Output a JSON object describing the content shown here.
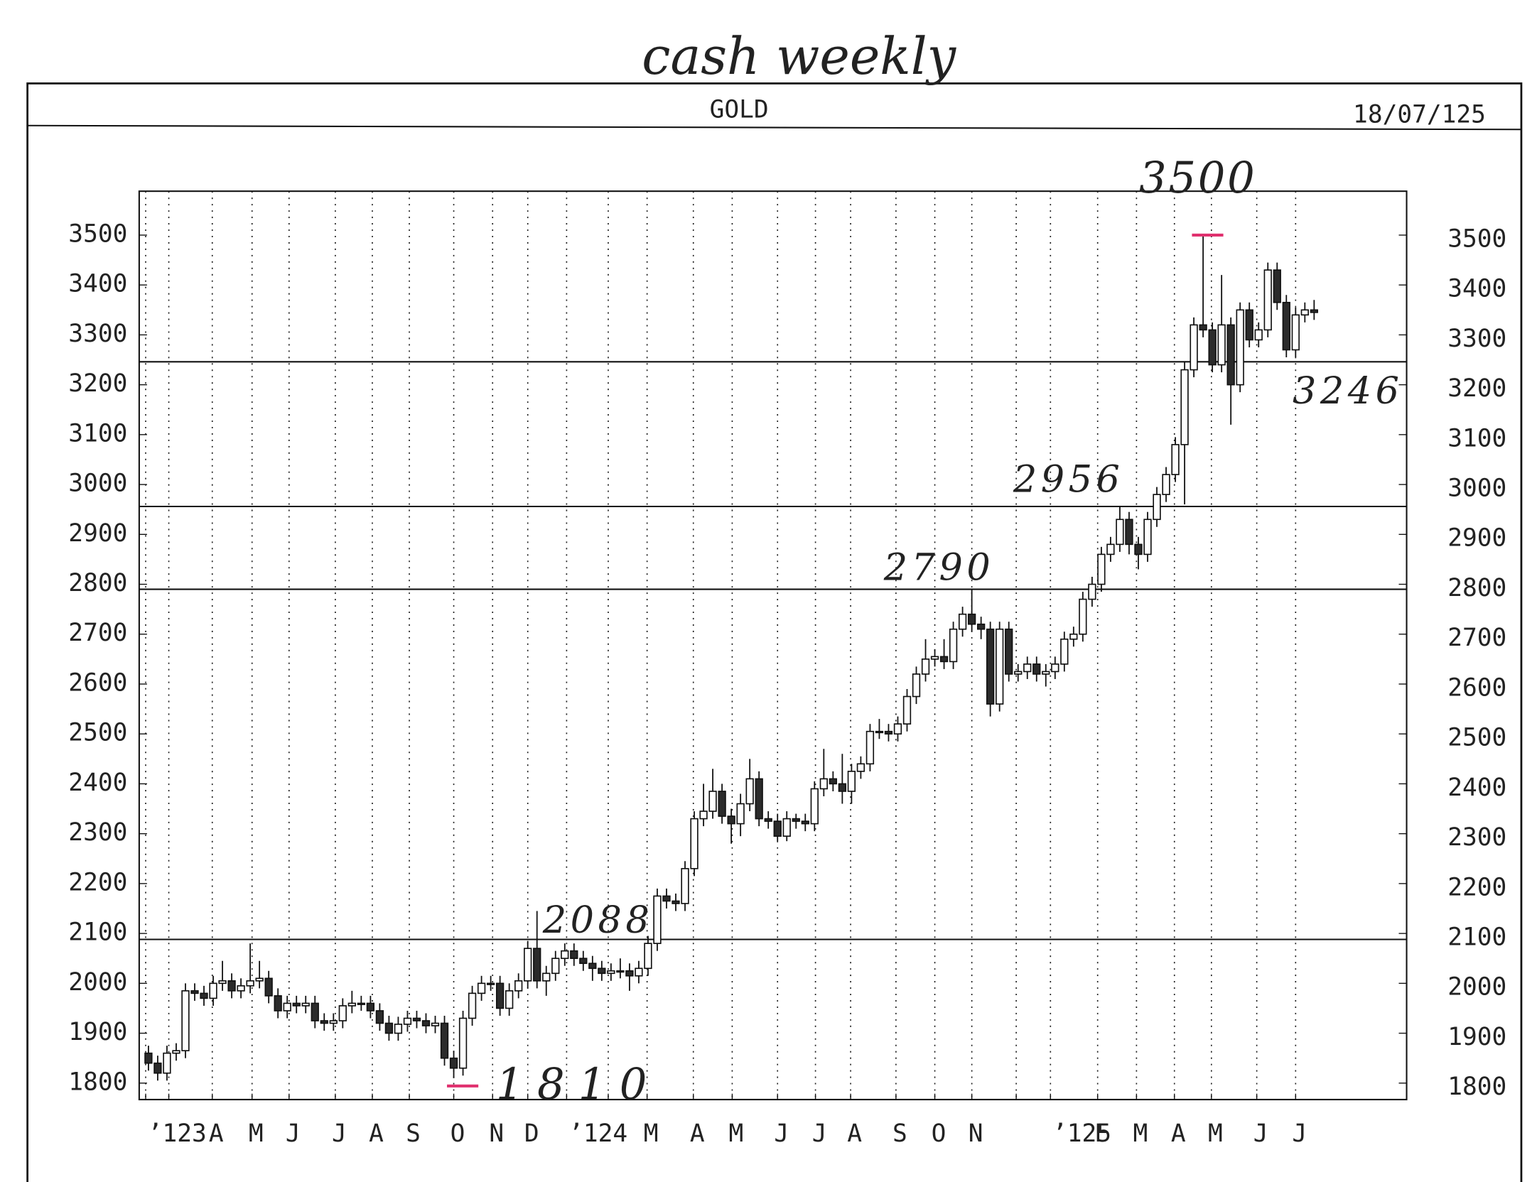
{
  "chart_data": {
    "type": "candlestick",
    "handwritten_title": "cash weekly",
    "title": "GOLD",
    "date": "18/07/125",
    "xlim": [
      -1,
      136
    ],
    "xticks": [
      {
        "value": -0.3,
        "label": "ʼ123"
      },
      {
        "value": 2.2,
        "label": null
      },
      {
        "value": 6.9,
        "label": "A"
      },
      {
        "value": 11.2,
        "label": "M"
      },
      {
        "value": 15.2,
        "label": "J"
      },
      {
        "value": 20.2,
        "label": "J"
      },
      {
        "value": 24.2,
        "label": "A"
      },
      {
        "value": 28.2,
        "label": "S"
      },
      {
        "value": 33,
        "label": "O"
      },
      {
        "value": 37.2,
        "label": "N"
      },
      {
        "value": 41,
        "label": "D"
      },
      {
        "value": 45.2,
        "label": "ʼ124"
      },
      {
        "value": 49.7,
        "label": null
      },
      {
        "value": 53.9,
        "label": "M"
      },
      {
        "value": 58.9,
        "label": "A"
      },
      {
        "value": 63.1,
        "label": "M"
      },
      {
        "value": 68,
        "label": "J"
      },
      {
        "value": 72.1,
        "label": "J"
      },
      {
        "value": 75.9,
        "label": "A"
      },
      {
        "value": 80.8,
        "label": "S"
      },
      {
        "value": 85,
        "label": "O"
      },
      {
        "value": 89,
        "label": "N"
      },
      {
        "value": 93.8,
        "label": null
      },
      {
        "value": 97.5,
        "label": "ʼ125"
      },
      {
        "value": 102.6,
        "label": "F"
      },
      {
        "value": 106.8,
        "label": "M"
      },
      {
        "value": 110.9,
        "label": "A"
      },
      {
        "value": 114.9,
        "label": "M"
      },
      {
        "value": 119.8,
        "label": "J"
      },
      {
        "value": 124,
        "label": "J"
      }
    ],
    "ylim": [
      1767,
      3588
    ],
    "yticks": [
      1800,
      1900,
      2000,
      2100,
      2200,
      2300,
      2400,
      2500,
      2600,
      2700,
      2800,
      2900,
      3000,
      3100,
      3200,
      3300,
      3400,
      3500
    ],
    "up_color": "#ffffff",
    "down_color": "#2b2b2b",
    "annotation_color": "#e0306e",
    "levels": [
      3246,
      2956,
      2790,
      2088
    ],
    "marked_extremes": [
      3500,
      1810
    ],
    "open": [
      1860,
      1840,
      1820,
      1860,
      1865,
      1985,
      1980,
      1970,
      2000,
      2005,
      1985,
      1995,
      2005,
      2010,
      1975,
      1945,
      1960,
      1955,
      1960,
      1925,
      1920,
      1925,
      1955,
      1960,
      1960,
      1945,
      1920,
      1900,
      1918,
      1930,
      1925,
      1915,
      1920,
      1850,
      1830,
      1930,
      1980,
      2000,
      2000,
      1950,
      1985,
      2005,
      2070,
      2005,
      2020,
      2050,
      2065,
      2050,
      2040,
      2030,
      2020,
      2025,
      2025,
      2015,
      2030,
      2080,
      2175,
      2165,
      2160,
      2230,
      2330,
      2345,
      2385,
      2335,
      2320,
      2360,
      2410,
      2330,
      2325,
      2295,
      2330,
      2325,
      2320,
      2390,
      2410,
      2400,
      2385,
      2425,
      2440,
      2505,
      2505,
      2500,
      2520,
      2575,
      2620,
      2650,
      2655,
      2645,
      2710,
      2740,
      2720,
      2710,
      2560,
      2710,
      2620,
      2625,
      2640,
      2620,
      2625,
      2640,
      2690,
      2700,
      2770,
      2800,
      2860,
      2880,
      2930,
      2880,
      2860,
      2930,
      2980,
      3020,
      3080,
      3230,
      3320,
      3310,
      3240,
      3320,
      3200,
      3350,
      3290,
      3310,
      3430,
      3365,
      3270,
      3340,
      3350
    ],
    "high": [
      1875,
      1855,
      1875,
      1880,
      2000,
      2000,
      1995,
      2015,
      2045,
      2020,
      2010,
      2080,
      2045,
      2025,
      1990,
      1975,
      1975,
      1975,
      1975,
      1940,
      1940,
      1970,
      1985,
      1975,
      1975,
      1960,
      1935,
      1933,
      1945,
      1945,
      1940,
      1935,
      1935,
      1865,
      1945,
      1995,
      2015,
      2015,
      2015,
      2000,
      2020,
      2085,
      2145,
      2035,
      2065,
      2080,
      2080,
      2065,
      2055,
      2045,
      2040,
      2050,
      2040,
      2045,
      2095,
      2190,
      2190,
      2180,
      2245,
      2345,
      2400,
      2430,
      2400,
      2350,
      2380,
      2450,
      2425,
      2345,
      2340,
      2345,
      2340,
      2340,
      2405,
      2470,
      2425,
      2460,
      2440,
      2455,
      2520,
      2530,
      2520,
      2535,
      2590,
      2635,
      2690,
      2670,
      2690,
      2725,
      2755,
      2790,
      2735,
      2725,
      2725,
      2725,
      2640,
      2655,
      2655,
      2640,
      2655,
      2705,
      2715,
      2785,
      2815,
      2875,
      2895,
      2955,
      2945,
      2895,
      2945,
      2995,
      3035,
      3095,
      3245,
      3335,
      3500,
      3325,
      3420,
      3335,
      3365,
      3365,
      3325,
      3445,
      3445,
      3380,
      3355,
      3365,
      3370
    ],
    "low": [
      1825,
      1805,
      1805,
      1845,
      1850,
      1965,
      1955,
      1955,
      1985,
      1970,
      1970,
      1980,
      1990,
      1960,
      1930,
      1930,
      1940,
      1940,
      1910,
      1905,
      1905,
      1910,
      1940,
      1945,
      1930,
      1905,
      1885,
      1885,
      1903,
      1910,
      1900,
      1900,
      1835,
      1810,
      1815,
      1915,
      1965,
      1985,
      1935,
      1935,
      1970,
      1990,
      1990,
      1975,
      2005,
      2035,
      2035,
      2025,
      2005,
      2005,
      2005,
      2010,
      1985,
      2000,
      2015,
      2065,
      2150,
      2145,
      2145,
      2215,
      2315,
      2330,
      2320,
      2280,
      2295,
      2345,
      2315,
      2310,
      2285,
      2285,
      2310,
      2305,
      2305,
      2375,
      2385,
      2360,
      2360,
      2410,
      2425,
      2490,
      2485,
      2485,
      2505,
      2560,
      2605,
      2635,
      2630,
      2630,
      2695,
      2705,
      2690,
      2535,
      2545,
      2605,
      2605,
      2610,
      2605,
      2595,
      2610,
      2625,
      2675,
      2685,
      2755,
      2785,
      2845,
      2865,
      2860,
      2830,
      2845,
      2915,
      2965,
      3005,
      2960,
      3215,
      3295,
      3225,
      3225,
      3120,
      3185,
      3275,
      3275,
      3295,
      3350,
      3255,
      3255,
      3325,
      3330
    ],
    "close": [
      1840,
      1820,
      1860,
      1865,
      1985,
      1980,
      1970,
      2000,
      2005,
      1985,
      1995,
      2005,
      2010,
      1975,
      1945,
      1960,
      1955,
      1960,
      1925,
      1920,
      1925,
      1955,
      1960,
      1960,
      1945,
      1920,
      1900,
      1918,
      1930,
      1925,
      1915,
      1920,
      1850,
      1830,
      1930,
      1980,
      2000,
      2000,
      1950,
      1985,
      2005,
      2070,
      2005,
      2020,
      2050,
      2065,
      2050,
      2040,
      2030,
      2020,
      2025,
      2025,
      2015,
      2030,
      2080,
      2175,
      2165,
      2160,
      2230,
      2330,
      2345,
      2385,
      2335,
      2320,
      2360,
      2410,
      2330,
      2325,
      2295,
      2330,
      2325,
      2320,
      2390,
      2410,
      2400,
      2385,
      2425,
      2440,
      2505,
      2505,
      2500,
      2520,
      2575,
      2620,
      2650,
      2655,
      2645,
      2710,
      2740,
      2720,
      2710,
      2560,
      2710,
      2620,
      2625,
      2640,
      2620,
      2625,
      2640,
      2690,
      2700,
      2770,
      2800,
      2860,
      2880,
      2930,
      2880,
      2860,
      2930,
      2980,
      3020,
      3080,
      3230,
      3320,
      3310,
      3240,
      3320,
      3200,
      3350,
      3290,
      3310,
      3430,
      3365,
      3270,
      3340,
      3350,
      3345
    ]
  }
}
